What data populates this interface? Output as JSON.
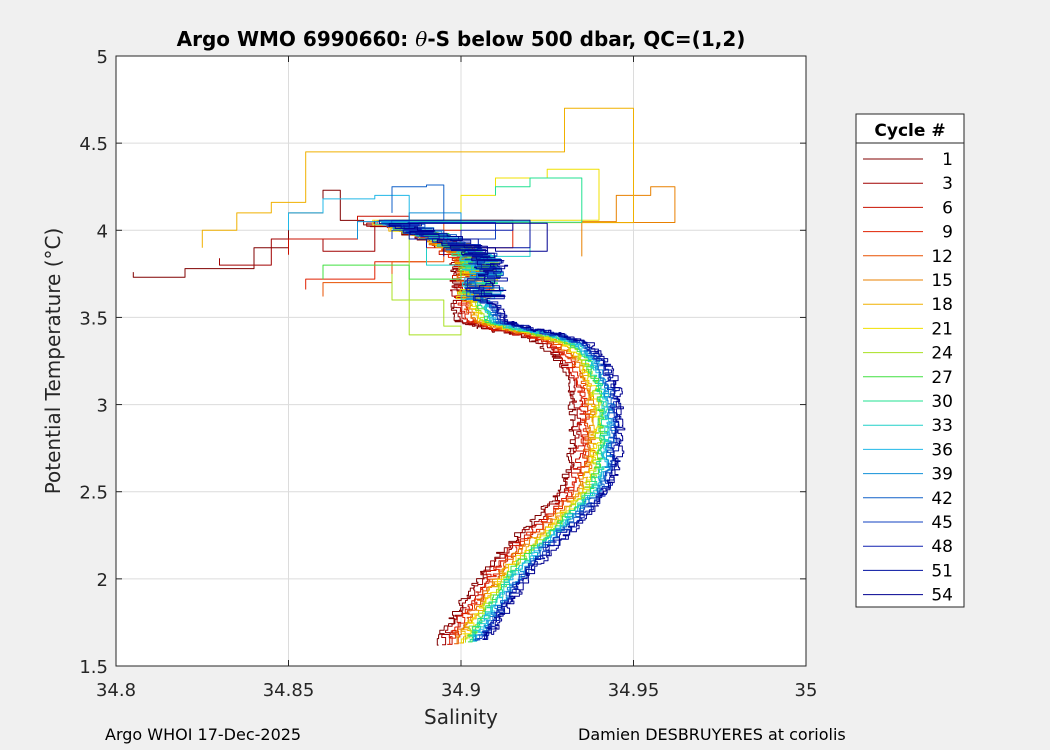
{
  "chart_data": {
    "type": "line",
    "title": {
      "prefix": "Argo WMO 6990660: ",
      "theta": "θ",
      "suffix": "-S below 500 dbar,  QC=(1,2)"
    },
    "xlabel": "Salinity",
    "ylabel": "Potential Temperature (°C)",
    "xlim": [
      34.8,
      35.0
    ],
    "ylim": [
      1.5,
      5.0
    ],
    "xticks": [
      34.8,
      34.85,
      34.9,
      34.95,
      35.0
    ],
    "xtick_labels": [
      "34.8",
      "34.85",
      "34.9",
      "34.95",
      "35"
    ],
    "yticks": [
      1.5,
      2.0,
      2.5,
      3.0,
      3.5,
      4.0,
      4.5,
      5.0
    ],
    "ytick_labels": [
      "1.5",
      "2",
      "2.5",
      "3",
      "3.5",
      "4",
      "4.5",
      "5"
    ],
    "grid": true,
    "legend": {
      "title": "Cycle #",
      "position": "right",
      "entries": [
        {
          "label": "1",
          "color": "#800000"
        },
        {
          "label": "3",
          "color": "#a00000"
        },
        {
          "label": "6",
          "color": "#c81000"
        },
        {
          "label": "9",
          "color": "#e02000"
        },
        {
          "label": "12",
          "color": "#e85000"
        },
        {
          "label": "15",
          "color": "#e88000"
        },
        {
          "label": "18",
          "color": "#f0b000"
        },
        {
          "label": "21",
          "color": "#f0e000"
        },
        {
          "label": "24",
          "color": "#a8e020"
        },
        {
          "label": "27",
          "color": "#40e040"
        },
        {
          "label": "30",
          "color": "#20e090"
        },
        {
          "label": "33",
          "color": "#20d0c8"
        },
        {
          "label": "36",
          "color": "#20b8e8"
        },
        {
          "label": "39",
          "color": "#1090d8"
        },
        {
          "label": "42",
          "color": "#1060c8"
        },
        {
          "label": "45",
          "color": "#1040c0"
        },
        {
          "label": "48",
          "color": "#1020b0"
        },
        {
          "label": "51",
          "color": "#0010a0"
        },
        {
          "label": "54",
          "color": "#000090"
        }
      ]
    },
    "profile_template": [
      [
        34.88,
        4.05
      ],
      [
        34.895,
        3.95
      ],
      [
        34.905,
        3.85
      ],
      [
        34.906,
        3.75
      ],
      [
        34.905,
        3.6
      ],
      [
        34.908,
        3.48
      ],
      [
        34.915,
        3.44
      ],
      [
        34.925,
        3.4
      ],
      [
        34.932,
        3.35
      ],
      [
        34.937,
        3.25
      ],
      [
        34.94,
        3.1
      ],
      [
        34.941,
        2.95
      ],
      [
        34.941,
        2.8
      ],
      [
        34.94,
        2.65
      ],
      [
        34.937,
        2.5
      ],
      [
        34.93,
        2.35
      ],
      [
        34.922,
        2.2
      ],
      [
        34.915,
        2.05
      ],
      [
        34.91,
        1.9
      ],
      [
        34.905,
        1.75
      ],
      [
        34.902,
        1.65
      ]
    ],
    "series": [
      {
        "name": "Cycle 1",
        "color": "#800000",
        "offset": -0.0085,
        "shallow": [
          [
            34.805,
            3.76
          ],
          [
            34.82,
            3.73
          ],
          [
            34.84,
            3.78
          ],
          [
            34.85,
            3.9
          ],
          [
            34.86,
            4.1
          ],
          [
            34.865,
            4.23
          ]
        ]
      },
      {
        "name": "Cycle 3",
        "color": "#a00000",
        "offset": -0.0075,
        "shallow": [
          [
            34.83,
            3.84
          ],
          [
            34.845,
            3.8
          ],
          [
            34.86,
            3.95
          ],
          [
            34.875,
            3.88
          ]
        ]
      },
      {
        "name": "Cycle 6",
        "color": "#c81000",
        "offset": -0.006,
        "shallow": [
          [
            34.85,
            3.86
          ],
          [
            34.87,
            3.95
          ],
          [
            34.885,
            4.08
          ],
          [
            34.9,
            4.0
          ]
        ]
      },
      {
        "name": "Cycle 9",
        "color": "#e02000",
        "offset": -0.005,
        "shallow": [
          [
            34.855,
            3.66
          ],
          [
            34.875,
            3.72
          ],
          [
            34.89,
            3.82
          ],
          [
            34.915,
            3.9
          ]
        ]
      },
      {
        "name": "Cycle 12",
        "color": "#e85000",
        "offset": -0.004,
        "shallow": [
          [
            34.86,
            3.62
          ],
          [
            34.88,
            3.7
          ],
          [
            34.895,
            3.82
          ]
        ]
      },
      {
        "name": "Cycle 15",
        "color": "#e88000",
        "offset": -0.003,
        "shallow": [
          [
            34.935,
            3.85
          ],
          [
            34.945,
            4.05
          ],
          [
            34.955,
            4.2
          ],
          [
            34.962,
            4.25
          ]
        ]
      },
      {
        "name": "Cycle 18",
        "color": "#f0b000",
        "offset": -0.0025,
        "shallow": [
          [
            34.825,
            3.9
          ],
          [
            34.835,
            4.0
          ],
          [
            34.845,
            4.1
          ],
          [
            34.855,
            4.16
          ],
          [
            34.93,
            4.45
          ],
          [
            34.95,
            4.7
          ]
        ]
      },
      {
        "name": "Cycle 21",
        "color": "#f0e000",
        "offset": -0.0015,
        "shallow": [
          [
            34.9,
            4.05
          ],
          [
            34.91,
            4.2
          ],
          [
            34.925,
            4.3
          ],
          [
            34.94,
            4.35
          ]
        ]
      },
      {
        "name": "Cycle 24",
        "color": "#a8e020",
        "offset": -0.0008,
        "shallow": [
          [
            34.88,
            3.75
          ],
          [
            34.895,
            3.6
          ],
          [
            34.9,
            3.45
          ],
          [
            34.885,
            3.4
          ]
        ]
      },
      {
        "name": "Cycle 27",
        "color": "#40e040",
        "offset": 0.0,
        "shallow": [
          [
            34.86,
            3.72
          ],
          [
            34.885,
            3.8
          ],
          [
            34.9,
            3.72
          ]
        ]
      },
      {
        "name": "Cycle 30",
        "color": "#20e090",
        "offset": 0.0005,
        "shallow": [
          [
            34.91,
            4.2
          ],
          [
            34.92,
            4.25
          ],
          [
            34.935,
            4.3
          ]
        ]
      },
      {
        "name": "Cycle 33",
        "color": "#20d0c8",
        "offset": 0.0012,
        "shallow": [
          [
            34.89,
            3.9
          ],
          [
            34.905,
            3.8
          ],
          [
            34.92,
            3.85
          ]
        ]
      },
      {
        "name": "Cycle 36",
        "color": "#20b8e8",
        "offset": 0.0018,
        "shallow": [
          [
            34.85,
            4.0
          ],
          [
            34.86,
            4.1
          ],
          [
            34.875,
            4.18
          ],
          [
            34.885,
            4.2
          ]
        ]
      },
      {
        "name": "Cycle 39",
        "color": "#1090d8",
        "offset": 0.0025,
        "shallow": [
          [
            34.87,
            3.95
          ],
          [
            34.885,
            4.05
          ],
          [
            34.9,
            4.1
          ]
        ]
      },
      {
        "name": "Cycle 42",
        "color": "#1060c8",
        "offset": 0.003,
        "shallow": [
          [
            34.88,
            4.1
          ],
          [
            34.89,
            4.25
          ],
          [
            34.895,
            4.26
          ]
        ]
      },
      {
        "name": "Cycle 45",
        "color": "#1040c0",
        "offset": 0.0036,
        "shallow": [
          [
            34.88,
            3.95
          ],
          [
            34.895,
            4.0
          ],
          [
            34.91,
            3.95
          ]
        ]
      },
      {
        "name": "Cycle 48",
        "color": "#1020b0",
        "offset": 0.0042,
        "shallow": [
          [
            34.885,
            4.05
          ],
          [
            34.9,
            3.95
          ],
          [
            34.915,
            4.0
          ]
        ]
      },
      {
        "name": "Cycle 51",
        "color": "#0010a0",
        "offset": 0.0048,
        "shallow": [
          [
            34.89,
            3.9
          ],
          [
            34.905,
            3.95
          ],
          [
            34.92,
            3.9
          ]
        ]
      },
      {
        "name": "Cycle 54",
        "color": "#000090",
        "offset": 0.0055,
        "shallow": [
          [
            34.895,
            3.85
          ],
          [
            34.91,
            3.9
          ],
          [
            34.925,
            3.88
          ]
        ]
      }
    ]
  },
  "footer": {
    "left": "Argo WHOI 17-Dec-2025",
    "right": "Damien DESBRUYERES at coriolis"
  }
}
